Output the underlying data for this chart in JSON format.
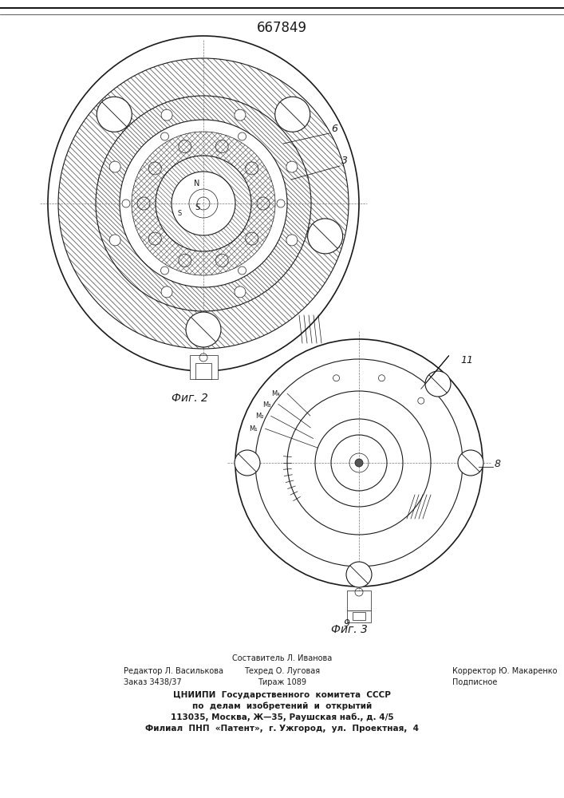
{
  "title": "667849",
  "fig2_label": "Фиг. 2",
  "fig3_label": "Фиг. 3",
  "bg_color": "#ffffff",
  "line_color": "#1a1a1a",
  "hatch_color": "#555555",
  "label_6": "6",
  "label_3": "3",
  "label_8": "8",
  "label_11": "11",
  "label_9": "9",
  "footer_line1": "Составитель Л. Иванова",
  "footer_line2_left": "Редактор Л. Василькова",
  "footer_line2_mid": "Техред О. Луговая",
  "footer_line2_right": "Корректор Ю. Макаренко",
  "footer_line3_left": "Заказ 3438/37",
  "footer_line3_mid": "Тираж 1089",
  "footer_line3_right": "Подписное",
  "footer_line4": "ЦНИИПИ  Государственного  комитета  СССР",
  "footer_line5": "по  делам  изобретений  и  открытий",
  "footer_line6": "113035, Москва, Ж—35, Раушская наб., д. 4/5",
  "footer_line7": "Филиал  ПНП  «Патент»,  г. Ужгород,  ул.  Проектная,  4"
}
